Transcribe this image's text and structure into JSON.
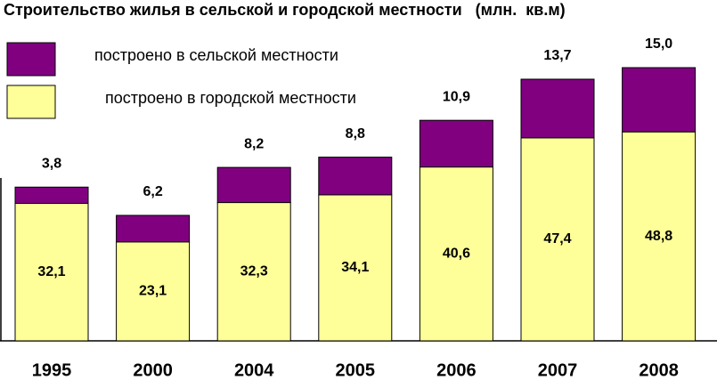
{
  "chart_data": {
    "type": "stacked_bar",
    "title": "Строительство жилья в сельской и городской местности   (млн.  кв.м)",
    "categories": [
      "1995",
      "2000",
      "2004",
      "2005",
      "2006",
      "2007",
      "2008"
    ],
    "series": [
      {
        "name": "построено в городской местности",
        "color": "#ffff99",
        "values": [
          32.1,
          23.1,
          32.3,
          34.1,
          40.6,
          47.4,
          48.8
        ],
        "value_labels": [
          "32,1",
          "23,1",
          "32,3",
          "34,1",
          "40,6",
          "47,4",
          "48,8"
        ]
      },
      {
        "name": "построено в сельской местности",
        "color": "#800080",
        "values": [
          3.8,
          6.2,
          8.2,
          8.8,
          10.9,
          13.7,
          15.0
        ],
        "value_labels": [
          "3,8",
          "6,2",
          "8,2",
          "8,8",
          "10,9",
          "13,7",
          "15,0"
        ]
      }
    ]
  }
}
